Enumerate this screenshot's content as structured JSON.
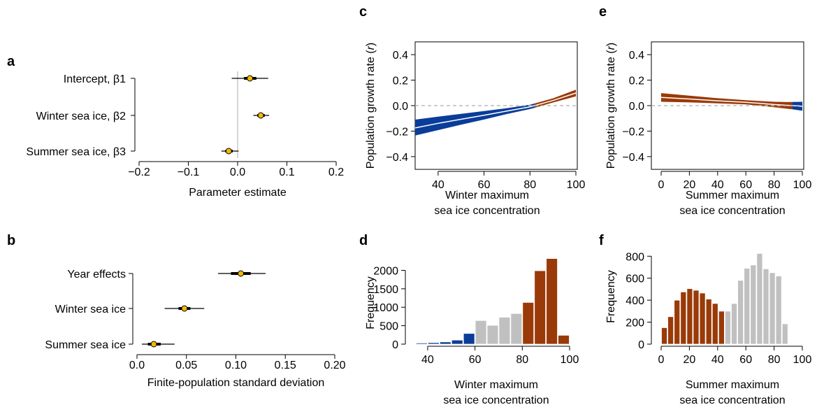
{
  "colors": {
    "point": "#F5B800",
    "blue": "#0A3D9A",
    "brown": "#9A3A08",
    "gray": "#C0C0C0",
    "zero_line": "#BBBBBB"
  },
  "chart_data": [
    {
      "panel": "a",
      "type": "interval",
      "xlabel": "Parameter estimate",
      "xlim": [
        -0.2,
        0.2
      ],
      "xticks": [
        "−0.2",
        "−0.1",
        "0.0",
        "0.1",
        "0.2"
      ],
      "xtick_values": [
        -0.2,
        -0.1,
        0.0,
        0.1,
        0.2
      ],
      "categories": [
        "Intercept, β1",
        "Winter sea ice, β2",
        "Summer sea ice, β3"
      ],
      "estimates": [
        0.025,
        0.047,
        -0.018
      ],
      "inner_interval": [
        [
          0.013,
          0.038
        ],
        [
          0.04,
          0.055
        ],
        [
          -0.025,
          -0.01
        ]
      ],
      "outer_interval": [
        [
          -0.012,
          0.062
        ],
        [
          0.032,
          0.064
        ],
        [
          -0.033,
          0.002
        ]
      ],
      "zero_line": true
    },
    {
      "panel": "b",
      "type": "interval",
      "xlabel": "Finite-population standard deviation",
      "xlim": [
        0.0,
        0.2
      ],
      "xticks": [
        "0.0",
        "0.05",
        "0.10",
        "0.15",
        "0.20"
      ],
      "xtick_values": [
        0.0,
        0.05,
        0.1,
        0.15,
        0.2
      ],
      "categories": [
        "Year effects",
        "Winter sea ice",
        "Summer sea ice"
      ],
      "estimates": [
        0.105,
        0.048,
        0.017
      ],
      "inner_interval": [
        [
          0.095,
          0.115
        ],
        [
          0.042,
          0.054
        ],
        [
          0.011,
          0.024
        ]
      ],
      "outer_interval": [
        [
          0.082,
          0.13
        ],
        [
          0.028,
          0.068
        ],
        [
          0.005,
          0.038
        ]
      ]
    },
    {
      "panel": "c",
      "type": "area",
      "xlabel": "Winter maximum sea ice concentration",
      "xlabel_lines": [
        "Winter maximum",
        "sea ice concentration"
      ],
      "ylabel": "Population growth rate (r)",
      "ylabel_parts": [
        "Population growth rate (",
        "r",
        ")"
      ],
      "xlim": [
        30,
        100
      ],
      "ylim": [
        -0.5,
        0.5
      ],
      "xticks": [
        "40",
        "60",
        "80",
        "100"
      ],
      "xtick_values": [
        40,
        60,
        80,
        100
      ],
      "yticks": [
        "−0.4",
        "−0.2",
        "0.0",
        "0.2",
        "0.4"
      ],
      "ytick_values": [
        -0.4,
        -0.2,
        0.0,
        0.2,
        0.4
      ],
      "zero_line": true,
      "x": [
        30,
        40,
        50,
        60,
        70,
        80,
        90,
        100
      ],
      "upper": [
        -0.11,
        -0.086,
        -0.064,
        -0.043,
        -0.02,
        0.007,
        0.057,
        0.125
      ],
      "lower": [
        -0.235,
        -0.192,
        -0.15,
        -0.109,
        -0.066,
        -0.027,
        0.024,
        0.073
      ],
      "mean": [
        -0.175,
        -0.139,
        -0.107,
        -0.076,
        -0.043,
        -0.01,
        0.04,
        0.099
      ]
    },
    {
      "panel": "d",
      "type": "bar",
      "ylabel": "Frequency",
      "xlabel": "Winter maximum sea ice concentration",
      "xlabel_lines": [
        "Winter maximum",
        "sea ice concentration"
      ],
      "xlim": [
        35,
        100
      ],
      "ylim": [
        0,
        2350
      ],
      "xticks": [
        "40",
        "60",
        "80",
        "100"
      ],
      "xtick_values": [
        40,
        60,
        80,
        100
      ],
      "yticks": [
        "0",
        "500",
        "1000",
        "1500",
        "2000"
      ],
      "ytick_values": [
        0,
        500,
        1000,
        1500,
        2000
      ],
      "bin_width": 5,
      "bin_starts": [
        35,
        40,
        45,
        50,
        55,
        60,
        65,
        70,
        75,
        80,
        85,
        90,
        95
      ],
      "values": [
        30,
        40,
        60,
        110,
        290,
        640,
        510,
        730,
        830,
        1130,
        1990,
        2320,
        240
      ],
      "groups": [
        "blue",
        "blue",
        "blue",
        "blue",
        "blue",
        "gray",
        "gray",
        "gray",
        "gray",
        "brown",
        "brown",
        "brown",
        "brown"
      ]
    },
    {
      "panel": "e",
      "type": "area",
      "xlabel": "Summer maximum sea ice concentration",
      "xlabel_lines": [
        "Summer maximum",
        "sea ice concentration"
      ],
      "ylabel": "Population growth rate (r)",
      "ylabel_parts": [
        "Population growth rate (",
        "r",
        ")"
      ],
      "xlim": [
        0,
        100
      ],
      "ylim": [
        -0.5,
        0.5
      ],
      "xticks": [
        "0",
        "20",
        "40",
        "60",
        "80",
        "100"
      ],
      "xtick_values": [
        0,
        20,
        40,
        60,
        80,
        100
      ],
      "yticks": [
        "−0.4",
        "−0.2",
        "0.0",
        "0.2",
        "0.4"
      ],
      "ytick_values": [
        -0.4,
        -0.2,
        0.0,
        0.2,
        0.4
      ],
      "zero_line": true,
      "x": [
        0,
        20,
        40,
        60,
        70,
        80,
        90,
        100
      ],
      "upper": [
        0.098,
        0.078,
        0.058,
        0.042,
        0.036,
        0.03,
        0.028,
        0.03
      ],
      "lower": [
        0.03,
        0.025,
        0.018,
        0.01,
        -0.001,
        -0.012,
        -0.025,
        -0.04
      ],
      "mean": [
        0.064,
        0.052,
        0.038,
        0.026,
        0.018,
        0.009,
        0.002,
        -0.005
      ]
    },
    {
      "panel": "f",
      "type": "bar",
      "ylabel": "Frequency",
      "xlabel": "Summer maximum sea ice concentration",
      "xlabel_lines": [
        "Summer maximum",
        "sea ice concentration"
      ],
      "xlim": [
        0,
        100
      ],
      "ylim": [
        0,
        840
      ],
      "xticks": [
        "0",
        "20",
        "40",
        "60",
        "80",
        "100"
      ],
      "xtick_values": [
        0,
        20,
        40,
        60,
        80,
        100
      ],
      "yticks": [
        "0",
        "200",
        "400",
        "600",
        "800"
      ],
      "ytick_values": [
        0,
        200,
        400,
        600,
        800
      ],
      "bin_width": 4.5,
      "bin_starts": [
        0,
        4.5,
        9,
        13.5,
        18,
        22.5,
        27,
        31.5,
        36,
        40.5,
        45,
        49.5,
        54,
        58.5,
        63,
        67.5,
        72,
        76.5,
        81,
        85.5,
        90
      ],
      "values": [
        150,
        250,
        400,
        475,
        505,
        490,
        465,
        410,
        370,
        300,
        300,
        370,
        580,
        690,
        720,
        825,
        685,
        650,
        620,
        185,
        0
      ],
      "groups": [
        "brown",
        "brown",
        "brown",
        "brown",
        "brown",
        "brown",
        "brown",
        "brown",
        "brown",
        "brown",
        "gray",
        "gray",
        "gray",
        "gray",
        "gray",
        "gray",
        "gray",
        "gray",
        "gray",
        "gray",
        "gray"
      ]
    }
  ]
}
